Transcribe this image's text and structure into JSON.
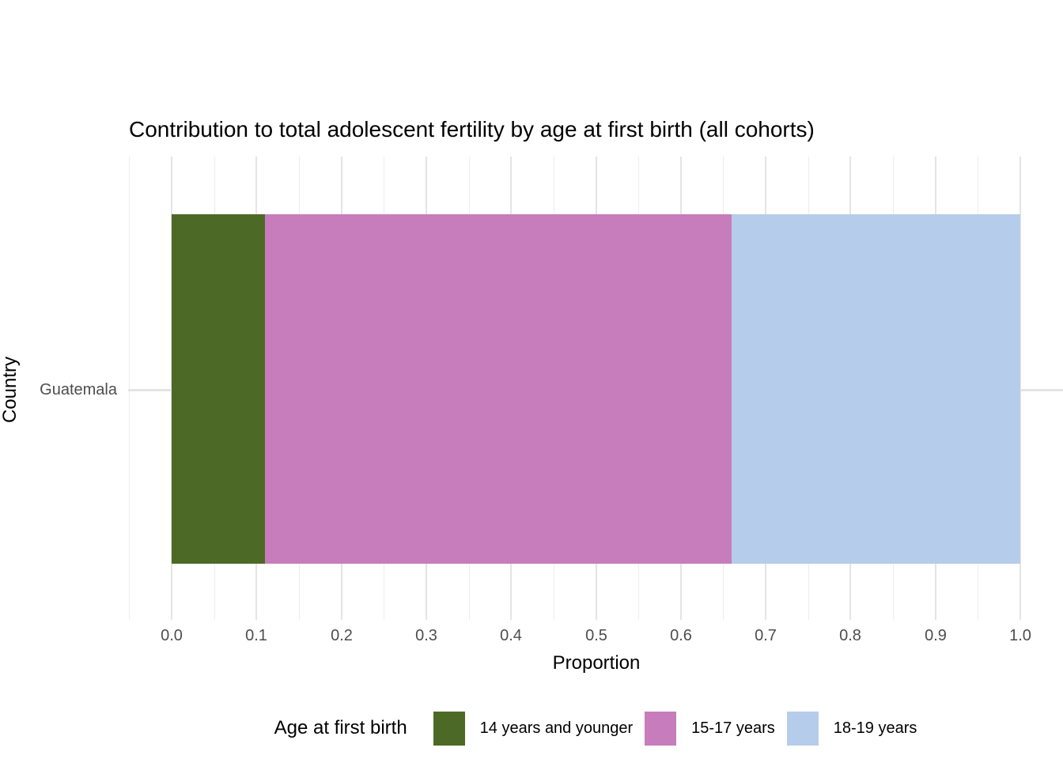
{
  "chart_data": {
    "type": "bar",
    "orientation": "horizontal",
    "stacked": true,
    "title": "Contribution to total adolescent fertility by age at first birth (all cohorts)",
    "xlabel": "Proportion",
    "ylabel": "Country",
    "categories": [
      "Guatemala"
    ],
    "series": [
      {
        "name": "14 years and younger",
        "values": [
          0.11
        ],
        "color": "#4C6A26"
      },
      {
        "name": "15-17 years",
        "values": [
          0.55
        ],
        "color": "#C77CBB"
      },
      {
        "name": "18-19 years",
        "values": [
          0.34
        ],
        "color": "#B5CDEB"
      }
    ],
    "xlim": [
      0.0,
      1.0
    ],
    "x_major_ticks": [
      0.0,
      0.1,
      0.2,
      0.3,
      0.4,
      0.5,
      0.6,
      0.7,
      0.8,
      0.9,
      1.0
    ],
    "x_tick_labels": [
      "0.0",
      "0.1",
      "0.2",
      "0.3",
      "0.4",
      "0.5",
      "0.6",
      "0.7",
      "0.8",
      "0.9",
      "1.0"
    ],
    "x_minor_ticks": [
      -0.05,
      0.05,
      0.15,
      0.25,
      0.35,
      0.45,
      0.55,
      0.65,
      0.75,
      0.85,
      0.95,
      1.05
    ],
    "grid": true,
    "legend": {
      "title": "Age at first birth",
      "position": "bottom"
    }
  },
  "colors": {
    "background": "#FFFFFF",
    "text": "#000000",
    "tick_text": "#4D4D4D",
    "grid_major": "#E4E4E4",
    "grid_minor": "#EDEDED"
  }
}
